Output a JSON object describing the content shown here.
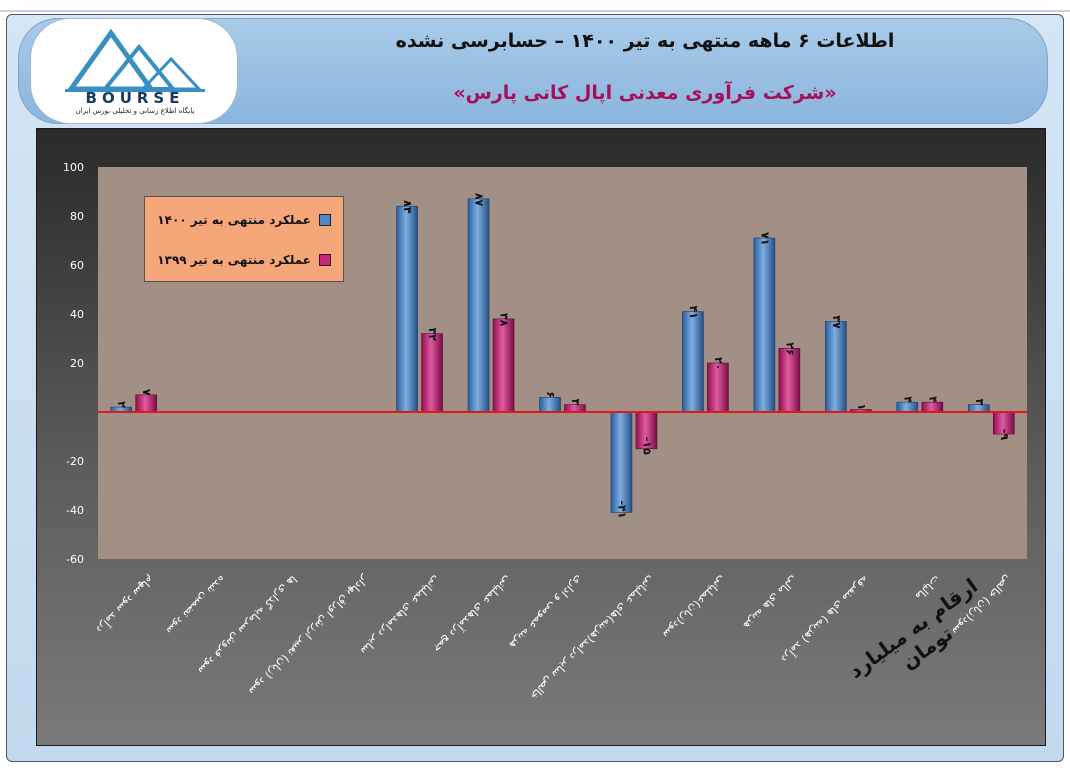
{
  "header": {
    "title": "اطلاعات ۶ ماهه منتهی به تیر ۱۴۰۰ – حسابرسی نشده",
    "company": "«شرکت فرآوری معدنی اپال کانی پارس»"
  },
  "logo": {
    "brand": "BOURSE",
    "tagline": "پایگاه اطلاع رسانی و تحلیلی بورس ایران"
  },
  "units_note": "ارقام به میلیارد تومان",
  "colors": {
    "series_1400": "#4f86c4",
    "series_1399": "#c8287a",
    "zero_line": "#e01818",
    "plot_bg": "#a28f86",
    "legend_bg": "#f6a779"
  },
  "chart_data": {
    "type": "bar",
    "title": "",
    "xlabel": "",
    "ylabel": "",
    "ylim": [
      -60,
      100
    ],
    "yticks": [
      "100",
      "80",
      "60",
      "40",
      "20",
      "",
      "-20",
      "-40",
      "-60"
    ],
    "grid": false,
    "legend_position": "top-left",
    "categories": [
      "درآمد سود سهام",
      "سود تضمین شده",
      "سود فروش سرمایه گذاری ها",
      "سود (زیان) تغییر ارزش اوراق بهادار",
      "سایر درامدهای عملیاتی",
      "جمع درآمدهای عملیاتی",
      "هزینه عمومی و اداری",
      "خالص سایر درامد(هزینه)های عملیاتی",
      "سود(زیان)عملیاتی",
      "هزینه های مالی",
      "درآمد (هزینه) های متفرقه",
      "مالیات",
      "سود(زیان) خالص"
    ],
    "series": [
      {
        "name": "عملکرد منتهی به تیر ۱۴۰۰",
        "values": [
          2,
          null,
          null,
          null,
          84,
          87,
          6,
          -41,
          41,
          71,
          37,
          4,
          3
        ],
        "labels": [
          "۲",
          "",
          "",
          "",
          "۸۴",
          "۸۷",
          "۶",
          "-۴۱",
          "۴۱",
          "۷۱",
          "۳۷",
          "۴",
          "۳"
        ]
      },
      {
        "name": "عملکرد منتهی به تیر ۱۳۹۹",
        "values": [
          7,
          null,
          null,
          null,
          32,
          38,
          3,
          -15,
          20,
          26,
          1,
          4,
          -9
        ],
        "labels": [
          "۷",
          "",
          "",
          "",
          "۳۲",
          "۳۸",
          "۳",
          "-۱۵",
          "۲۰",
          "۲۶",
          "۱",
          "۴",
          "-۹"
        ]
      }
    ]
  }
}
